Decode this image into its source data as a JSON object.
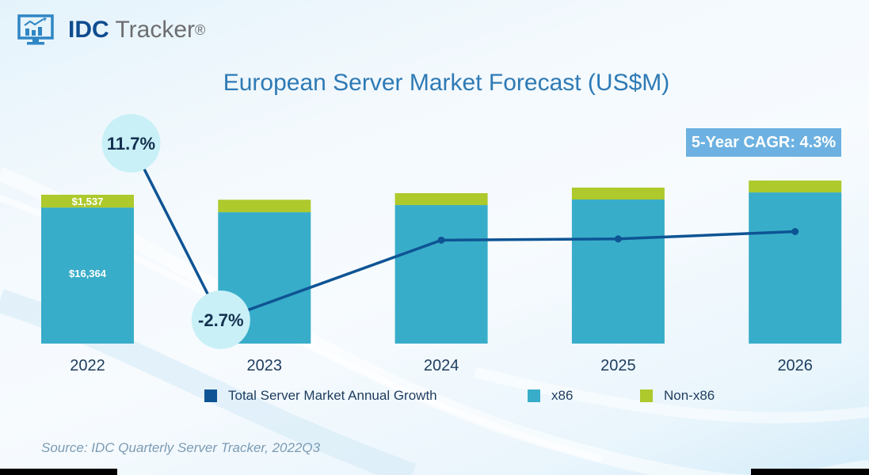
{
  "header": {
    "logo_bold": "IDC",
    "logo_light": " Tracker",
    "logo_reg": "®",
    "logo_icon": "monitor-chart-icon"
  },
  "cagr_label": "5-Year CAGR: 4.3%",
  "source": "Source: IDC Quarterly Server Tracker, 2022Q3",
  "colors": {
    "x86": "#38adc9",
    "non_x86": "#adc92c",
    "growth_line": "#0e5494",
    "bubble": "#c9f0f7",
    "bubble_text": "#14304f",
    "title": "#2e7ab5",
    "cagr_bg": "#6cb1e1"
  },
  "chart_data": {
    "type": "bar",
    "stacked": true,
    "title": "European Server Market Forecast  (US$M)",
    "categories": [
      "2022",
      "2023",
      "2024",
      "2025",
      "2026"
    ],
    "series": [
      {
        "name": "x86",
        "values": [
          16364,
          15800,
          16660,
          17330,
          18180
        ]
      },
      {
        "name": "Non-x86",
        "values": [
          1537,
          1500,
          1430,
          1430,
          1430
        ]
      }
    ],
    "line_series": {
      "name": "Total Server Market Annual Growth",
      "unit": "%",
      "values": [
        11.7,
        -2.7,
        3.8,
        3.9,
        4.5
      ],
      "labeled_points": [
        {
          "index": 0,
          "label": "11.7%"
        },
        {
          "index": 1,
          "label": "-2.7%"
        }
      ]
    },
    "data_labels": [
      {
        "series": "x86",
        "index": 0,
        "label": "$16,364"
      },
      {
        "series": "Non-x86",
        "index": 0,
        "label": "$1,537"
      }
    ],
    "legend": [
      "Total Server Market Annual Growth",
      "x86",
      "Non-x86"
    ],
    "legend_position": "bottom",
    "xlabel": "",
    "ylabel": "",
    "ylim": [
      0,
      21000
    ],
    "growth_lim": [
      -6,
      20
    ],
    "grid": false
  }
}
